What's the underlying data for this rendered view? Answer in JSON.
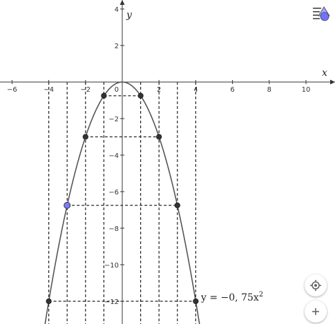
{
  "chart_data": {
    "type": "line",
    "function_label": {
      "lhs": "y = −0, 75x",
      "exponent": "2"
    },
    "function": {
      "a": -0.75,
      "power": 2
    },
    "x_axis": {
      "label": "x",
      "range": [
        -6.5,
        11.5
      ],
      "ticks": [
        -6,
        -4,
        -2,
        2,
        4,
        6,
        8,
        10
      ],
      "tick_labels": [
        "−6",
        "−4",
        "−2",
        "2",
        "4",
        "6",
        "8",
        "10"
      ]
    },
    "y_axis": {
      "label": "y",
      "range": [
        -13.0,
        4.4
      ],
      "ticks": [
        4,
        2,
        -2,
        -4,
        -6,
        -8,
        -10,
        -12
      ],
      "tick_labels": [
        "4",
        "2",
        "−2",
        "−4",
        "−6",
        "−8",
        "−10",
        "−12"
      ]
    },
    "origin_label": "0",
    "points": [
      {
        "x": -1,
        "y": -0.75
      },
      {
        "x": 1,
        "y": -0.75
      },
      {
        "x": -2,
        "y": -3
      },
      {
        "x": 2,
        "y": -3
      },
      {
        "x": -3,
        "y": -6.75,
        "highlight": true
      },
      {
        "x": 3,
        "y": -6.75
      },
      {
        "x": -4,
        "y": -12
      },
      {
        "x": 4,
        "y": -12
      }
    ],
    "point_color": "#333333",
    "highlight_color": "#7b7bff",
    "curve_color": "#555555",
    "grid": false
  },
  "toolbar": {
    "style_bar_icon": "style-bar-icon",
    "recenter_icon": "recenter-icon",
    "zoom_in_icon": "zoom-in-icon"
  }
}
